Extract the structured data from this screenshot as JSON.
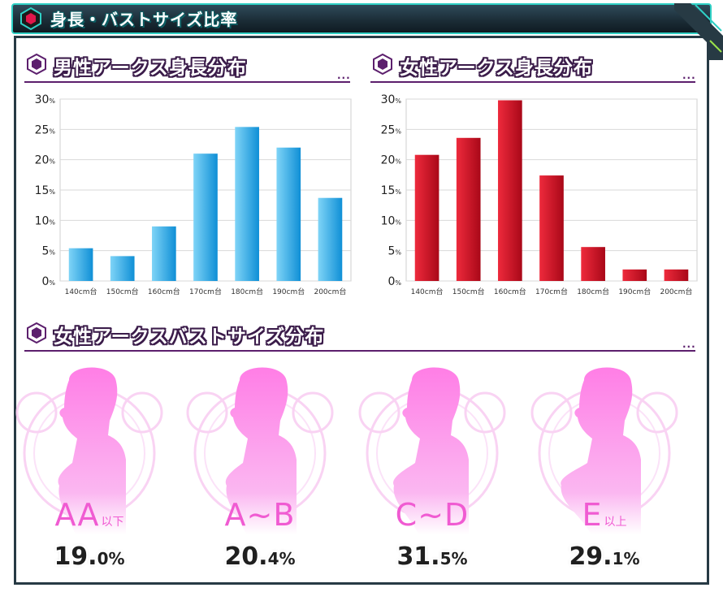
{
  "header": {
    "title": "身長・バストサイズ比率"
  },
  "sections": {
    "male_height": "男性アークス身長分布",
    "female_height": "女性アークス身長分布",
    "female_bust": "女性アークスバストサイズ分布",
    "more": "..."
  },
  "chart_data": [
    {
      "type": "bar",
      "title": "男性アークス身長分布",
      "categories": [
        "140cm台",
        "150cm台",
        "160cm台",
        "170cm台",
        "180cm台",
        "190cm台",
        "200cm台"
      ],
      "values": [
        5.4,
        4.1,
        9.0,
        21.0,
        25.4,
        22.0,
        13.7
      ],
      "ylim": [
        0,
        30
      ],
      "yticks": [
        "0%",
        "5%",
        "10%",
        "15%",
        "20%",
        "25%",
        "30%"
      ],
      "ytick_values": [
        0,
        5,
        10,
        15,
        20,
        25,
        30
      ],
      "grid": true,
      "color": "#13a6e6"
    },
    {
      "type": "bar",
      "title": "女性アークス身長分布",
      "categories": [
        "140cm台",
        "150cm台",
        "160cm台",
        "170cm台",
        "180cm台",
        "190cm台",
        "200cm台"
      ],
      "values": [
        20.8,
        23.6,
        29.8,
        17.4,
        5.6,
        1.9,
        1.9
      ],
      "ylim": [
        0,
        30
      ],
      "yticks": [
        "0%",
        "5%",
        "10%",
        "15%",
        "20%",
        "25%",
        "30%"
      ],
      "ytick_values": [
        0,
        5,
        10,
        15,
        20,
        25,
        30
      ],
      "grid": true,
      "color": "#d20d1c"
    }
  ],
  "bust": [
    {
      "label": "AA",
      "suffix": "以下",
      "value": "19.",
      "decimal": "0",
      "unit": "%"
    },
    {
      "label": "A~B",
      "suffix": "",
      "value": "20.",
      "decimal": "4",
      "unit": "%"
    },
    {
      "label": "C~D",
      "suffix": "",
      "value": "31.",
      "decimal": "5",
      "unit": "%"
    },
    {
      "label": "E",
      "suffix": "以上",
      "value": "29.",
      "decimal": "1",
      "unit": "%"
    }
  ]
}
